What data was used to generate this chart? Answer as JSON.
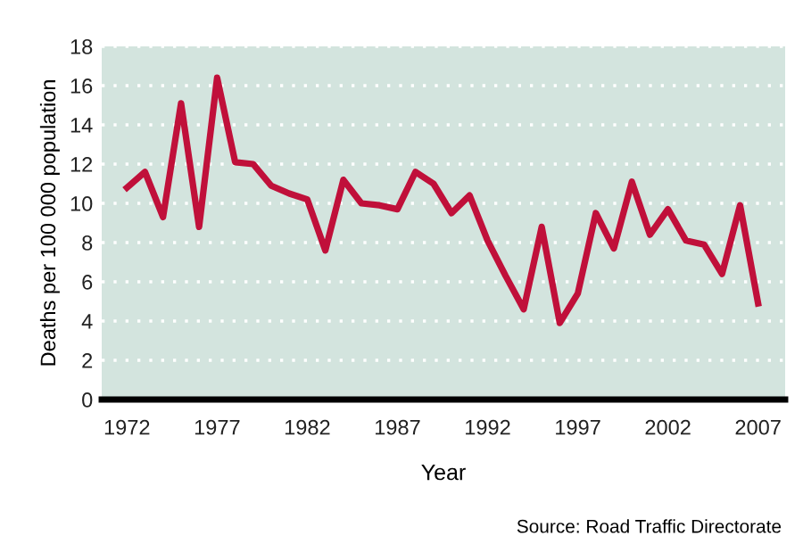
{
  "chart_data": {
    "type": "line",
    "xlabel": "Year",
    "ylabel": "Deaths per 100 000 population",
    "annotations": [
      "Source: Road Traffic Directorate"
    ],
    "x": [
      1972,
      1973,
      1974,
      1975,
      1976,
      1977,
      1978,
      1979,
      1980,
      1981,
      1982,
      1983,
      1984,
      1985,
      1986,
      1987,
      1988,
      1989,
      1990,
      1991,
      1992,
      1993,
      1994,
      1995,
      1996,
      1997,
      1998,
      1999,
      2000,
      2001,
      2002,
      2003,
      2004,
      2005,
      2006,
      2007
    ],
    "series": [
      {
        "color": "#c0103a",
        "values": [
          10.8,
          11.6,
          9.3,
          15.1,
          8.8,
          16.4,
          12.1,
          12.0,
          10.9,
          10.5,
          10.2,
          7.6,
          11.2,
          10.0,
          9.9,
          9.7,
          11.6,
          11.0,
          9.5,
          10.4,
          8.1,
          6.3,
          4.6,
          8.8,
          3.9,
          5.4,
          9.5,
          7.7,
          11.1,
          8.4,
          9.7,
          8.1,
          7.9,
          6.4,
          9.9,
          4.9
        ]
      }
    ],
    "xlim": [
      1970.6,
      2008.5
    ],
    "ylim": [
      0,
      18
    ],
    "xticks": [
      1972,
      1977,
      1982,
      1987,
      1992,
      1997,
      2002,
      2007
    ],
    "yticks": [
      0,
      2,
      4,
      6,
      8,
      10,
      12,
      14,
      16,
      18
    ],
    "grid": "y",
    "line_style": "solid",
    "marker": "none",
    "legend": false
  }
}
